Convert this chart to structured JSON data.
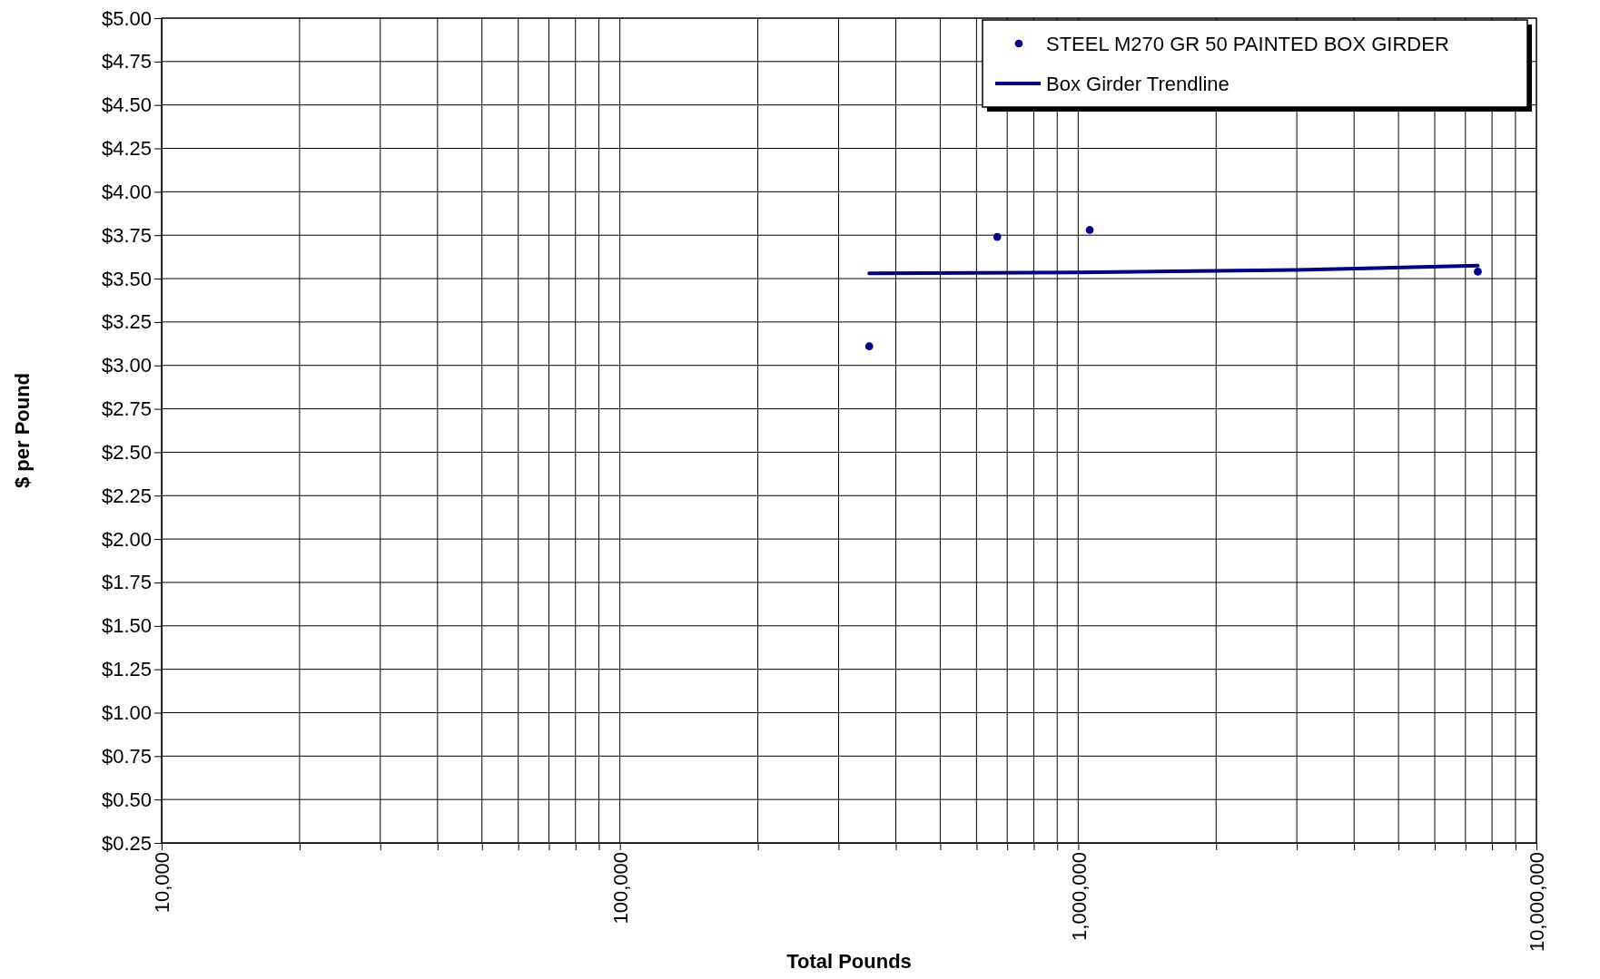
{
  "chart_data": {
    "type": "scatter",
    "xlabel": "Total Pounds",
    "ylabel": "$ per Pound",
    "log": "x",
    "grid": true,
    "legend": "top right",
    "xlim": [
      10000,
      10000000
    ],
    "ylim": [
      0.25,
      5
    ],
    "xticks": [
      {
        "value": 10000,
        "label": "10,000"
      },
      {
        "value": 20000,
        "label": null
      },
      {
        "value": 30000,
        "label": null
      },
      {
        "value": 40000,
        "label": null
      },
      {
        "value": 50000,
        "label": null
      },
      {
        "value": 60000,
        "label": null
      },
      {
        "value": 70000,
        "label": null
      },
      {
        "value": 80000,
        "label": null
      },
      {
        "value": 90000,
        "label": null
      },
      {
        "value": 100000,
        "label": "100,000"
      },
      {
        "value": 200000,
        "label": null
      },
      {
        "value": 300000,
        "label": null
      },
      {
        "value": 400000,
        "label": null
      },
      {
        "value": 500000,
        "label": null
      },
      {
        "value": 600000,
        "label": null
      },
      {
        "value": 700000,
        "label": null
      },
      {
        "value": 800000,
        "label": null
      },
      {
        "value": 900000,
        "label": null
      },
      {
        "value": 1000000,
        "label": "1,000,000"
      },
      {
        "value": 2000000,
        "label": null
      },
      {
        "value": 3000000,
        "label": null
      },
      {
        "value": 4000000,
        "label": null
      },
      {
        "value": 5000000,
        "label": null
      },
      {
        "value": 6000000,
        "label": null
      },
      {
        "value": 7000000,
        "label": null
      },
      {
        "value": 8000000,
        "label": null
      },
      {
        "value": 9000000,
        "label": null
      },
      {
        "value": 10000000,
        "label": "10,000,000"
      }
    ],
    "yticks": [
      {
        "value": 0.25,
        "label": "$0.25"
      },
      {
        "value": 0.5,
        "label": "$0.50"
      },
      {
        "value": 0.75,
        "label": "$0.75"
      },
      {
        "value": 1,
        "label": "$1.00"
      },
      {
        "value": 1.25,
        "label": "$1.25"
      },
      {
        "value": 1.5,
        "label": "$1.50"
      },
      {
        "value": 1.75,
        "label": "$1.75"
      },
      {
        "value": 2,
        "label": "$2.00"
      },
      {
        "value": 2.25,
        "label": "$2.25"
      },
      {
        "value": 2.5,
        "label": "$2.50"
      },
      {
        "value": 2.75,
        "label": "$2.75"
      },
      {
        "value": 3,
        "label": "$3.00"
      },
      {
        "value": 3.25,
        "label": "$3.25"
      },
      {
        "value": 3.5,
        "label": "$3.50"
      },
      {
        "value": 3.75,
        "label": "$3.75"
      },
      {
        "value": 4,
        "label": "$4.00"
      },
      {
        "value": 4.25,
        "label": "$4.25"
      },
      {
        "value": 4.5,
        "label": "$4.50"
      },
      {
        "value": 4.75,
        "label": "$4.75"
      },
      {
        "value": 5,
        "label": "$5.00"
      }
    ],
    "series": [
      {
        "name": "STEEL M270 GR 50 PAINTED BOX GIRDER",
        "color": "#000080",
        "marker": "circle",
        "x": [
          350000,
          666000,
          1060000,
          7450000
        ],
        "values": [
          3.11,
          3.74,
          3.78,
          3.54
        ]
      },
      {
        "name": "Box Girder Trendline",
        "type": "line",
        "color": "#000080",
        "line_style": "solid",
        "marker": "none",
        "x": [
          350000,
          1000000,
          3000000,
          7450000
        ],
        "values": [
          3.53,
          3.535,
          3.55,
          3.575
        ]
      }
    ]
  }
}
